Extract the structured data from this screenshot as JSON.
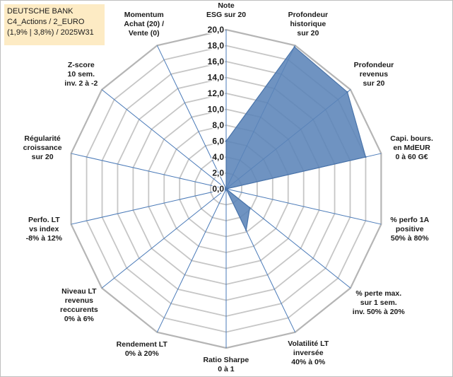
{
  "info_box": {
    "line1": "DEUTSCHE BANK",
    "line2": "C4_Actions / 2_EURO",
    "line3": "(1,9% | 3,8%) / 2025W31"
  },
  "chart_data": {
    "type": "radar",
    "title": "",
    "rlim": [
      0,
      20
    ],
    "ticks": [
      "0,0",
      "2,0",
      "4,0",
      "6,0",
      "8,0",
      "10,0",
      "12,0",
      "14,0",
      "16,0",
      "18,0",
      "20,0"
    ],
    "tick_values": [
      0,
      2,
      4,
      6,
      8,
      10,
      12,
      14,
      16,
      18,
      20
    ],
    "grid": true,
    "colors": {
      "fill": "#5b84b8",
      "stroke": "#4a74aa",
      "grid": "#c6c6c6",
      "axis": "#4a7ab8"
    },
    "axes": [
      {
        "label": [
          "Note",
          "ESG sur 20"
        ],
        "value": 6
      },
      {
        "label": [
          "Profondeur",
          "historique",
          "sur 20"
        ],
        "value": 19.8
      },
      {
        "label": [
          "Profondeur",
          "revenus",
          "sur 20"
        ],
        "value": 19.5
      },
      {
        "label": [
          "Capi. bours.",
          "en MdEUR",
          "0 à 60 G€"
        ],
        "value": 18
      },
      {
        "label": [
          "% perfo 1A",
          "positive",
          "50% à 80%"
        ],
        "value": 0
      },
      {
        "label": [
          "% perte max.",
          "sur 1 sem.",
          "inv. 50% à 20%"
        ],
        "value": 3.8
      },
      {
        "label": [
          "Volatilité LT",
          "inversée",
          "40% à 0%"
        ],
        "value": 5.8
      },
      {
        "label": [
          "Ratio Sharpe",
          "0 à 1"
        ],
        "value": 0
      },
      {
        "label": [
          "Rendement LT",
          "0% à 20%"
        ],
        "value": 0
      },
      {
        "label": [
          "Niveau LT",
          "revenus",
          "reccurents",
          "0% à 6%"
        ],
        "value": 0
      },
      {
        "label": [
          "Perfo. LT",
          "vs index",
          "-8% à 12%"
        ],
        "value": 0
      },
      {
        "label": [
          "Régularité",
          "croissance",
          "sur 20"
        ],
        "value": 0
      },
      {
        "label": [
          "Z-score",
          "10 sem.",
          "inv. 2 à -2"
        ],
        "value": 0
      },
      {
        "label": [
          "Momentum",
          "Achat (20) /",
          "Vente (0)"
        ],
        "value": 0
      }
    ]
  }
}
